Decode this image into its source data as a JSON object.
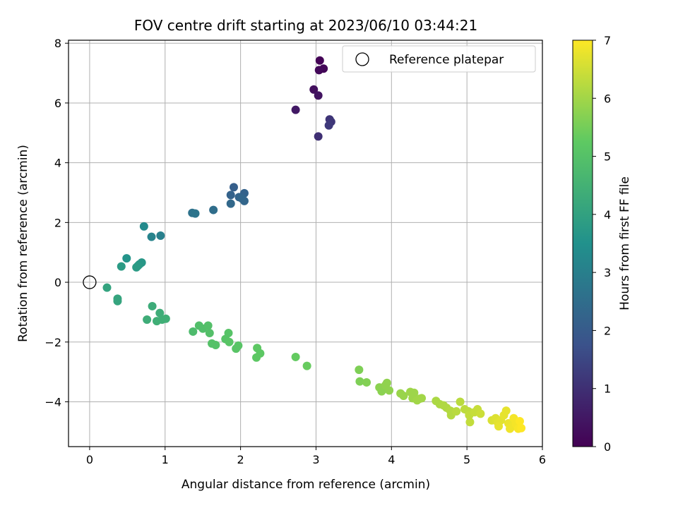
{
  "chart_data": {
    "type": "scatter",
    "title": "FOV centre drift starting at 2023/06/10 03:44:21",
    "xlabel": "Angular distance from reference (arcmin)",
    "ylabel": "Rotation from reference (arcmin)",
    "xlim": [
      -0.28,
      6.0
    ],
    "ylim": [
      -5.5,
      8.1
    ],
    "xticks": [
      0,
      1,
      2,
      3,
      4,
      5,
      6
    ],
    "yticks": [
      -4,
      -2,
      0,
      2,
      4,
      6,
      8
    ],
    "grid": true,
    "legend": {
      "placement": "top-right",
      "entries": [
        "Reference platepar"
      ]
    },
    "reference_point": {
      "x": 0,
      "y": 0
    },
    "colorbar": {
      "label": "Hours from first FF file",
      "range": [
        0,
        7
      ],
      "ticks": [
        0,
        1,
        2,
        3,
        4,
        5,
        6,
        7
      ],
      "colormap": "viridis",
      "colors": [
        "#440154",
        "#3b528b",
        "#21918c",
        "#5ec962",
        "#fde725"
      ]
    },
    "points": [
      {
        "x": 3.05,
        "y": 7.42,
        "h": 0.05
      },
      {
        "x": 3.1,
        "y": 7.15,
        "h": 0.1
      },
      {
        "x": 3.04,
        "y": 7.1,
        "h": 0.15
      },
      {
        "x": 2.97,
        "y": 6.45,
        "h": 0.3
      },
      {
        "x": 3.03,
        "y": 6.25,
        "h": 0.4
      },
      {
        "x": 2.73,
        "y": 5.77,
        "h": 0.5
      },
      {
        "x": 3.18,
        "y": 5.45,
        "h": 1.1
      },
      {
        "x": 3.2,
        "y": 5.37,
        "h": 1.15
      },
      {
        "x": 3.17,
        "y": 5.25,
        "h": 1.2
      },
      {
        "x": 3.03,
        "y": 4.88,
        "h": 1.0
      },
      {
        "x": 1.91,
        "y": 3.18,
        "h": 2.1
      },
      {
        "x": 2.05,
        "y": 2.98,
        "h": 2.2
      },
      {
        "x": 1.87,
        "y": 2.92,
        "h": 2.2
      },
      {
        "x": 1.98,
        "y": 2.85,
        "h": 2.25
      },
      {
        "x": 2.02,
        "y": 2.8,
        "h": 2.3
      },
      {
        "x": 2.05,
        "y": 2.72,
        "h": 2.3
      },
      {
        "x": 1.87,
        "y": 2.63,
        "h": 2.35
      },
      {
        "x": 1.64,
        "y": 2.42,
        "h": 2.5
      },
      {
        "x": 1.36,
        "y": 2.32,
        "h": 2.65
      },
      {
        "x": 1.4,
        "y": 2.3,
        "h": 2.7
      },
      {
        "x": 0.72,
        "y": 1.87,
        "h": 3.3
      },
      {
        "x": 0.94,
        "y": 1.56,
        "h": 3.0
      },
      {
        "x": 0.82,
        "y": 1.52,
        "h": 3.1
      },
      {
        "x": 0.49,
        "y": 0.8,
        "h": 3.6
      },
      {
        "x": 0.69,
        "y": 0.66,
        "h": 3.7
      },
      {
        "x": 0.66,
        "y": 0.6,
        "h": 3.7
      },
      {
        "x": 0.64,
        "y": 0.55,
        "h": 3.75
      },
      {
        "x": 0.42,
        "y": 0.53,
        "h": 3.8
      },
      {
        "x": 0.62,
        "y": 0.5,
        "h": 3.8
      },
      {
        "x": 0.23,
        "y": -0.18,
        "h": 4.05
      },
      {
        "x": 0.37,
        "y": -0.55,
        "h": 4.1
      },
      {
        "x": 0.37,
        "y": -0.63,
        "h": 4.1
      },
      {
        "x": 0.83,
        "y": -0.8,
        "h": 4.3
      },
      {
        "x": 0.93,
        "y": -1.03,
        "h": 4.35
      },
      {
        "x": 1.01,
        "y": -1.22,
        "h": 4.4
      },
      {
        "x": 0.96,
        "y": -1.25,
        "h": 4.4
      },
      {
        "x": 0.76,
        "y": -1.25,
        "h": 4.35
      },
      {
        "x": 0.89,
        "y": -1.3,
        "h": 4.4
      },
      {
        "x": 1.37,
        "y": -1.65,
        "h": 4.8
      },
      {
        "x": 1.45,
        "y": -1.45,
        "h": 4.9
      },
      {
        "x": 1.5,
        "y": -1.55,
        "h": 4.9
      },
      {
        "x": 1.57,
        "y": -1.45,
        "h": 4.95
      },
      {
        "x": 1.59,
        "y": -1.7,
        "h": 4.95
      },
      {
        "x": 1.62,
        "y": -2.05,
        "h": 5.0
      },
      {
        "x": 1.67,
        "y": -2.1,
        "h": 5.0
      },
      {
        "x": 1.84,
        "y": -1.7,
        "h": 5.05
      },
      {
        "x": 1.8,
        "y": -1.9,
        "h": 5.05
      },
      {
        "x": 1.85,
        "y": -2.0,
        "h": 5.1
      },
      {
        "x": 1.97,
        "y": -2.12,
        "h": 5.1
      },
      {
        "x": 1.94,
        "y": -2.22,
        "h": 5.1
      },
      {
        "x": 2.22,
        "y": -2.2,
        "h": 5.2
      },
      {
        "x": 2.26,
        "y": -2.38,
        "h": 5.2
      },
      {
        "x": 2.21,
        "y": -2.52,
        "h": 5.2
      },
      {
        "x": 2.73,
        "y": -2.5,
        "h": 5.3
      },
      {
        "x": 2.88,
        "y": -2.8,
        "h": 5.35
      },
      {
        "x": 3.57,
        "y": -2.93,
        "h": 5.6
      },
      {
        "x": 3.58,
        "y": -3.32,
        "h": 5.6
      },
      {
        "x": 3.67,
        "y": -3.35,
        "h": 5.65
      },
      {
        "x": 3.84,
        "y": -3.52,
        "h": 5.75
      },
      {
        "x": 3.87,
        "y": -3.65,
        "h": 5.75
      },
      {
        "x": 3.92,
        "y": -3.45,
        "h": 5.8
      },
      {
        "x": 3.94,
        "y": -3.37,
        "h": 5.8
      },
      {
        "x": 3.97,
        "y": -3.62,
        "h": 5.8
      },
      {
        "x": 4.12,
        "y": -3.72,
        "h": 5.9
      },
      {
        "x": 4.16,
        "y": -3.8,
        "h": 5.9
      },
      {
        "x": 4.25,
        "y": -3.67,
        "h": 5.95
      },
      {
        "x": 4.3,
        "y": -3.7,
        "h": 5.95
      },
      {
        "x": 4.28,
        "y": -3.88,
        "h": 5.95
      },
      {
        "x": 4.34,
        "y": -3.95,
        "h": 6.0
      },
      {
        "x": 4.37,
        "y": -3.9,
        "h": 6.0
      },
      {
        "x": 4.4,
        "y": -3.88,
        "h": 6.0
      },
      {
        "x": 4.59,
        "y": -3.97,
        "h": 6.1
      },
      {
        "x": 4.64,
        "y": -4.08,
        "h": 6.1
      },
      {
        "x": 4.69,
        "y": -4.12,
        "h": 6.15
      },
      {
        "x": 4.73,
        "y": -4.2,
        "h": 6.15
      },
      {
        "x": 4.78,
        "y": -4.3,
        "h": 6.2
      },
      {
        "x": 4.79,
        "y": -4.45,
        "h": 6.2
      },
      {
        "x": 4.86,
        "y": -4.32,
        "h": 6.25
      },
      {
        "x": 4.91,
        "y": -4.0,
        "h": 6.25
      },
      {
        "x": 4.97,
        "y": -4.25,
        "h": 6.3
      },
      {
        "x": 5.02,
        "y": -4.32,
        "h": 6.3
      },
      {
        "x": 5.03,
        "y": -4.45,
        "h": 6.35
      },
      {
        "x": 5.04,
        "y": -4.68,
        "h": 6.35
      },
      {
        "x": 5.1,
        "y": -4.35,
        "h": 6.4
      },
      {
        "x": 5.14,
        "y": -4.25,
        "h": 6.4
      },
      {
        "x": 5.18,
        "y": -4.4,
        "h": 6.45
      },
      {
        "x": 5.33,
        "y": -4.62,
        "h": 6.6
      },
      {
        "x": 5.38,
        "y": -4.55,
        "h": 6.65
      },
      {
        "x": 5.41,
        "y": -4.7,
        "h": 6.7
      },
      {
        "x": 5.45,
        "y": -4.62,
        "h": 6.7
      },
      {
        "x": 5.49,
        "y": -4.45,
        "h": 6.75
      },
      {
        "x": 5.52,
        "y": -4.3,
        "h": 6.75
      },
      {
        "x": 5.42,
        "y": -4.82,
        "h": 6.75
      },
      {
        "x": 5.55,
        "y": -4.72,
        "h": 6.8
      },
      {
        "x": 5.57,
        "y": -4.9,
        "h": 6.85
      },
      {
        "x": 5.6,
        "y": -4.82,
        "h": 6.85
      },
      {
        "x": 5.62,
        "y": -4.55,
        "h": 6.9
      },
      {
        "x": 5.65,
        "y": -4.75,
        "h": 6.9
      },
      {
        "x": 5.68,
        "y": -4.9,
        "h": 6.95
      },
      {
        "x": 5.7,
        "y": -4.65,
        "h": 7.0
      },
      {
        "x": 5.72,
        "y": -4.88,
        "h": 7.0
      }
    ]
  }
}
